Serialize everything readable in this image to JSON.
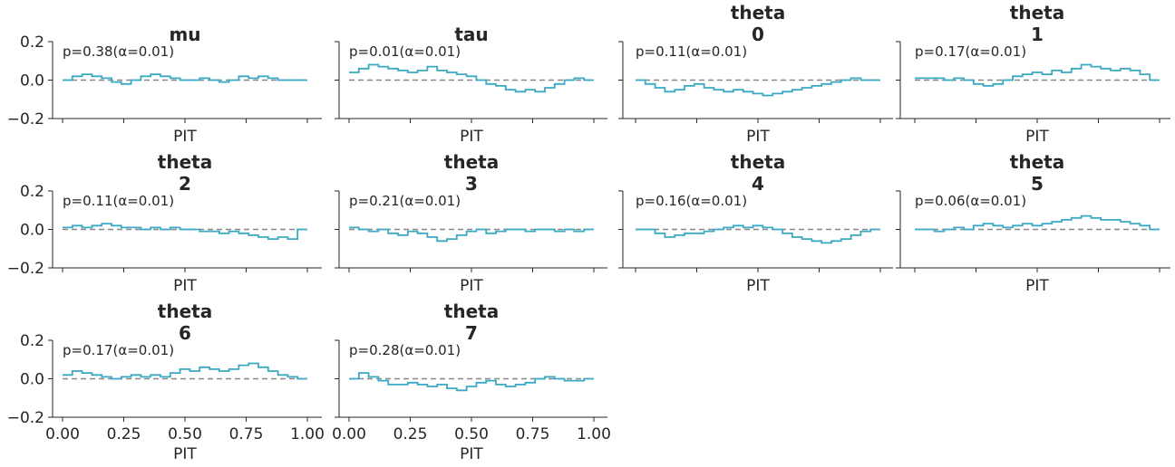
{
  "colors": {
    "series": "#3aa9c4",
    "reference": "#888888",
    "axis": "#262626"
  },
  "chart_data": [
    {
      "type": "line",
      "title": [
        "mu"
      ],
      "xlabel": "PIT",
      "annotation": "p=0.38(α=0.01)",
      "xlim": [
        0,
        1
      ],
      "ylim": [
        -0.2,
        0.2
      ],
      "xticks": [
        0,
        0.25,
        0.5,
        0.75,
        1
      ],
      "yticks": [
        -0.2,
        0,
        0.2
      ],
      "reference_y": 0,
      "values": [
        0.0,
        0.02,
        0.03,
        0.02,
        0.01,
        -0.01,
        -0.02,
        0.0,
        0.02,
        0.03,
        0.02,
        0.01,
        0.0,
        0.0,
        0.01,
        0.0,
        -0.01,
        0.0,
        0.02,
        0.01,
        0.02,
        0.01,
        0.0,
        0.0,
        0.0
      ]
    },
    {
      "type": "line",
      "title": [
        "tau"
      ],
      "xlabel": "PIT",
      "annotation": "p=0.01(α=0.01)",
      "xlim": [
        0,
        1
      ],
      "ylim": [
        -0.2,
        0.2
      ],
      "xticks": [
        0,
        0.25,
        0.5,
        0.75,
        1
      ],
      "yticks": [
        -0.2,
        0,
        0.2
      ],
      "reference_y": 0,
      "values": [
        0.04,
        0.06,
        0.08,
        0.07,
        0.06,
        0.05,
        0.04,
        0.05,
        0.07,
        0.05,
        0.04,
        0.03,
        0.02,
        0.0,
        -0.02,
        -0.03,
        -0.05,
        -0.06,
        -0.05,
        -0.06,
        -0.04,
        -0.02,
        0.0,
        0.01,
        0.0
      ]
    },
    {
      "type": "line",
      "title": [
        "theta",
        "0"
      ],
      "xlabel": "PIT",
      "annotation": "p=0.11(α=0.01)",
      "xlim": [
        0,
        1
      ],
      "ylim": [
        -0.2,
        0.2
      ],
      "xticks": [
        0,
        0.25,
        0.5,
        0.75,
        1
      ],
      "yticks": [
        -0.2,
        0,
        0.2
      ],
      "reference_y": 0,
      "values": [
        0.0,
        -0.02,
        -0.04,
        -0.06,
        -0.05,
        -0.03,
        -0.02,
        -0.04,
        -0.05,
        -0.06,
        -0.05,
        -0.06,
        -0.07,
        -0.08,
        -0.07,
        -0.06,
        -0.05,
        -0.04,
        -0.03,
        -0.02,
        -0.01,
        0.0,
        0.01,
        0.0,
        0.0
      ]
    },
    {
      "type": "line",
      "title": [
        "theta",
        "1"
      ],
      "xlabel": "PIT",
      "annotation": "p=0.17(α=0.01)",
      "xlim": [
        0,
        1
      ],
      "ylim": [
        -0.2,
        0.2
      ],
      "xticks": [
        0,
        0.25,
        0.5,
        0.75,
        1
      ],
      "yticks": [
        -0.2,
        0,
        0.2
      ],
      "reference_y": 0,
      "values": [
        0.01,
        0.01,
        0.01,
        0.0,
        0.01,
        0.0,
        -0.02,
        -0.03,
        -0.02,
        0.0,
        0.02,
        0.03,
        0.04,
        0.03,
        0.05,
        0.04,
        0.06,
        0.08,
        0.07,
        0.06,
        0.05,
        0.06,
        0.05,
        0.03,
        0.0
      ]
    },
    {
      "type": "line",
      "title": [
        "theta",
        "2"
      ],
      "xlabel": "PIT",
      "annotation": "p=0.11(α=0.01)",
      "xlim": [
        0,
        1
      ],
      "ylim": [
        -0.2,
        0.2
      ],
      "xticks": [
        0,
        0.25,
        0.5,
        0.75,
        1
      ],
      "yticks": [
        -0.2,
        0,
        0.2
      ],
      "reference_y": 0,
      "values": [
        0.01,
        0.02,
        0.01,
        0.02,
        0.03,
        0.02,
        0.01,
        0.01,
        0.0,
        0.01,
        0.0,
        0.01,
        0.0,
        0.0,
        -0.01,
        -0.01,
        -0.02,
        -0.01,
        -0.02,
        -0.03,
        -0.04,
        -0.05,
        -0.04,
        -0.05,
        0.0
      ]
    },
    {
      "type": "line",
      "title": [
        "theta",
        "3"
      ],
      "xlabel": "PIT",
      "annotation": "p=0.21(α=0.01)",
      "xlim": [
        0,
        1
      ],
      "ylim": [
        -0.2,
        0.2
      ],
      "xticks": [
        0,
        0.25,
        0.5,
        0.75,
        1
      ],
      "yticks": [
        -0.2,
        0,
        0.2
      ],
      "reference_y": 0,
      "values": [
        0.01,
        0.0,
        -0.01,
        0.0,
        -0.02,
        -0.03,
        -0.01,
        -0.02,
        -0.04,
        -0.06,
        -0.05,
        -0.03,
        -0.01,
        0.0,
        -0.02,
        -0.01,
        0.0,
        0.0,
        -0.01,
        0.0,
        0.0,
        -0.01,
        0.0,
        -0.01,
        0.0
      ]
    },
    {
      "type": "line",
      "title": [
        "theta",
        "4"
      ],
      "xlabel": "PIT",
      "annotation": "p=0.16(α=0.01)",
      "xlim": [
        0,
        1
      ],
      "ylim": [
        -0.2,
        0.2
      ],
      "xticks": [
        0,
        0.25,
        0.5,
        0.75,
        1
      ],
      "yticks": [
        -0.2,
        0,
        0.2
      ],
      "reference_y": 0,
      "values": [
        0.0,
        0.0,
        -0.02,
        -0.04,
        -0.03,
        -0.02,
        -0.02,
        -0.01,
        0.0,
        0.01,
        0.02,
        0.01,
        0.02,
        0.01,
        0.0,
        -0.02,
        -0.04,
        -0.05,
        -0.06,
        -0.07,
        -0.06,
        -0.05,
        -0.03,
        -0.01,
        0.0
      ]
    },
    {
      "type": "line",
      "title": [
        "theta",
        "5"
      ],
      "xlabel": "PIT",
      "annotation": "p=0.06(α=0.01)",
      "xlim": [
        0,
        1
      ],
      "ylim": [
        -0.2,
        0.2
      ],
      "xticks": [
        0,
        0.25,
        0.5,
        0.75,
        1
      ],
      "yticks": [
        -0.2,
        0,
        0.2
      ],
      "reference_y": 0,
      "values": [
        0.0,
        0.0,
        -0.01,
        0.0,
        0.01,
        0.0,
        0.02,
        0.03,
        0.02,
        0.01,
        0.02,
        0.03,
        0.02,
        0.03,
        0.04,
        0.05,
        0.06,
        0.07,
        0.06,
        0.05,
        0.05,
        0.04,
        0.03,
        0.02,
        0.0
      ]
    },
    {
      "type": "line",
      "title": [
        "theta",
        "6"
      ],
      "xlabel": "PIT",
      "annotation": "p=0.17(α=0.01)",
      "xlim": [
        0,
        1
      ],
      "ylim": [
        -0.2,
        0.2
      ],
      "xticks": [
        0,
        0.25,
        0.5,
        0.75,
        1
      ],
      "yticks": [
        -0.2,
        0,
        0.2
      ],
      "reference_y": 0,
      "values": [
        0.02,
        0.04,
        0.03,
        0.02,
        0.01,
        0.0,
        0.01,
        0.02,
        0.01,
        0.02,
        0.01,
        0.03,
        0.05,
        0.04,
        0.06,
        0.05,
        0.04,
        0.05,
        0.07,
        0.08,
        0.06,
        0.04,
        0.02,
        0.01,
        0.0
      ]
    },
    {
      "type": "line",
      "title": [
        "theta",
        "7"
      ],
      "xlabel": "PIT",
      "annotation": "p=0.28(α=0.01)",
      "xlim": [
        0,
        1
      ],
      "ylim": [
        -0.2,
        0.2
      ],
      "xticks": [
        0,
        0.25,
        0.5,
        0.75,
        1
      ],
      "yticks": [
        -0.2,
        0,
        0.2
      ],
      "reference_y": 0,
      "values": [
        0.0,
        0.03,
        0.01,
        -0.01,
        -0.03,
        -0.03,
        -0.02,
        -0.03,
        -0.04,
        -0.03,
        -0.05,
        -0.06,
        -0.04,
        -0.02,
        -0.01,
        -0.03,
        -0.04,
        -0.03,
        -0.02,
        0.0,
        0.01,
        0.0,
        -0.01,
        -0.01,
        0.0
      ],
      "show_xticklabels": true
    }
  ]
}
